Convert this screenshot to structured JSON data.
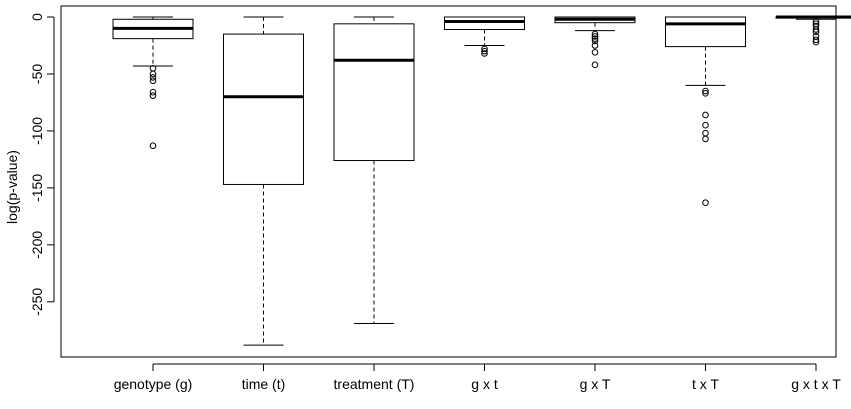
{
  "chart_data": {
    "type": "boxplot",
    "title": "",
    "xlabel": "",
    "ylabel": "log(p-value)",
    "ylim": [
      -300,
      5
    ],
    "yticks": [
      0,
      -50,
      -100,
      -150,
      -200,
      -250
    ],
    "ytick_labels": [
      "0",
      "-50",
      "-100",
      "-150",
      "-200",
      "-250"
    ],
    "grid": false,
    "legend": "none",
    "categories": [
      "genotype (g)",
      "time (t)",
      "treatment (T)",
      "g x t",
      "g x T",
      "t x T",
      "g x t x T"
    ],
    "boxes": [
      {
        "category": "genotype (g)",
        "whisker_low": -43,
        "q1": -19,
        "median": -10,
        "q3": -2,
        "whisker_high": 0,
        "outliers": [
          -45,
          -50,
          -53,
          -56,
          -66,
          -69,
          -113
        ]
      },
      {
        "category": "time (t)",
        "whisker_low": -288,
        "q1": -147,
        "median": -70,
        "q3": -15,
        "whisker_high": 0,
        "outliers": []
      },
      {
        "category": "treatment (T)",
        "whisker_low": -269,
        "q1": -126,
        "median": -38,
        "q3": -6,
        "whisker_high": 0,
        "outliers": []
      },
      {
        "category": "g x t",
        "whisker_low": -25,
        "q1": -11,
        "median": -4,
        "q3": 0,
        "whisker_high": 0,
        "outliers": [
          -28,
          -30,
          -32
        ]
      },
      {
        "category": "g x T",
        "whisker_low": -12,
        "q1": -5,
        "median": -2,
        "q3": 0,
        "whisker_high": 0,
        "outliers": [
          -15,
          -17,
          -19,
          -21,
          -25,
          -31,
          -42
        ]
      },
      {
        "category": "t x T",
        "whisker_low": -60,
        "q1": -26,
        "median": -6,
        "q3": 0,
        "whisker_high": 0,
        "outliers": [
          -65,
          -67,
          -86,
          -95,
          -102,
          -107,
          -163
        ]
      },
      {
        "category": "g x t x T",
        "whisker_low": -2,
        "q1": -1,
        "median": 0,
        "q3": 0,
        "whisker_high": 0,
        "outliers": [
          -4,
          -6,
          -8,
          -11,
          -13,
          -17,
          -20,
          -22
        ]
      }
    ]
  }
}
